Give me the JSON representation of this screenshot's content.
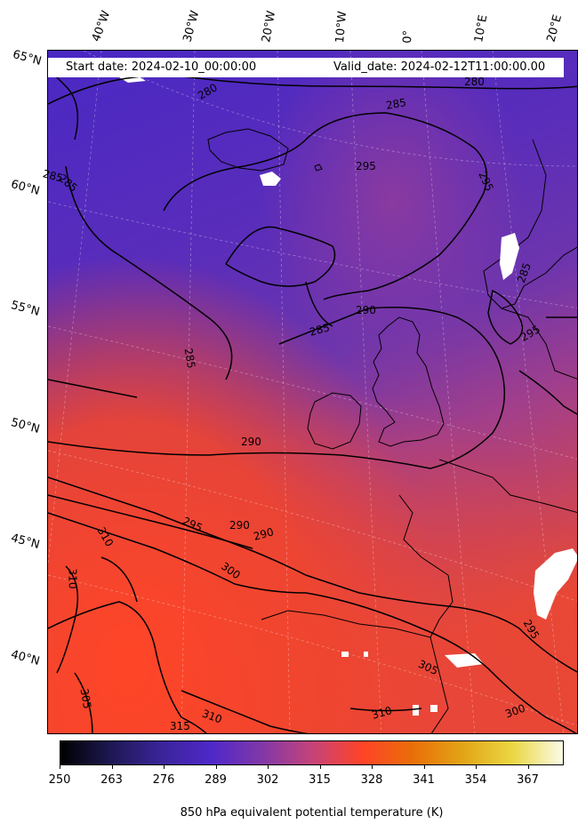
{
  "header": {
    "start_date": "Start date: 2024-02-10_00:00:00",
    "valid_date": "Valid_date: 2024-02-12T11:00:00.00"
  },
  "lon_labels": [
    "40°W",
    "30°W",
    "20°W",
    "10°W",
    "0°",
    "10°E",
    "20°E"
  ],
  "lat_labels": [
    "65°N",
    "60°N",
    "55°N",
    "50°N",
    "45°N",
    "40°N"
  ],
  "contour_labels": [
    "280",
    "280",
    "285",
    "285",
    "285",
    "285",
    "285",
    "285",
    "290",
    "290",
    "290",
    "290",
    "295",
    "295",
    "295",
    "295",
    "295",
    "300",
    "300",
    "305",
    "305",
    "310",
    "310",
    "310",
    "310",
    "315"
  ],
  "colorbar": {
    "title": "850 hPa equivalent potential temperature (K)",
    "ticks": [
      "250",
      "263",
      "276",
      "289",
      "302",
      "315",
      "328",
      "341",
      "354",
      "367"
    ],
    "colormap": [
      "#000000",
      "#1d1852",
      "#3a2499",
      "#4f28c9",
      "#8038a8",
      "#c4437a",
      "#ff4328",
      "#e96e08",
      "#e2a416",
      "#ebd743",
      "#fbfbe8"
    ]
  },
  "colors": {
    "cold_purple": "#4a2bbf",
    "mid_purple": "#6a36b0",
    "warm_red": "#f04a2c"
  }
}
